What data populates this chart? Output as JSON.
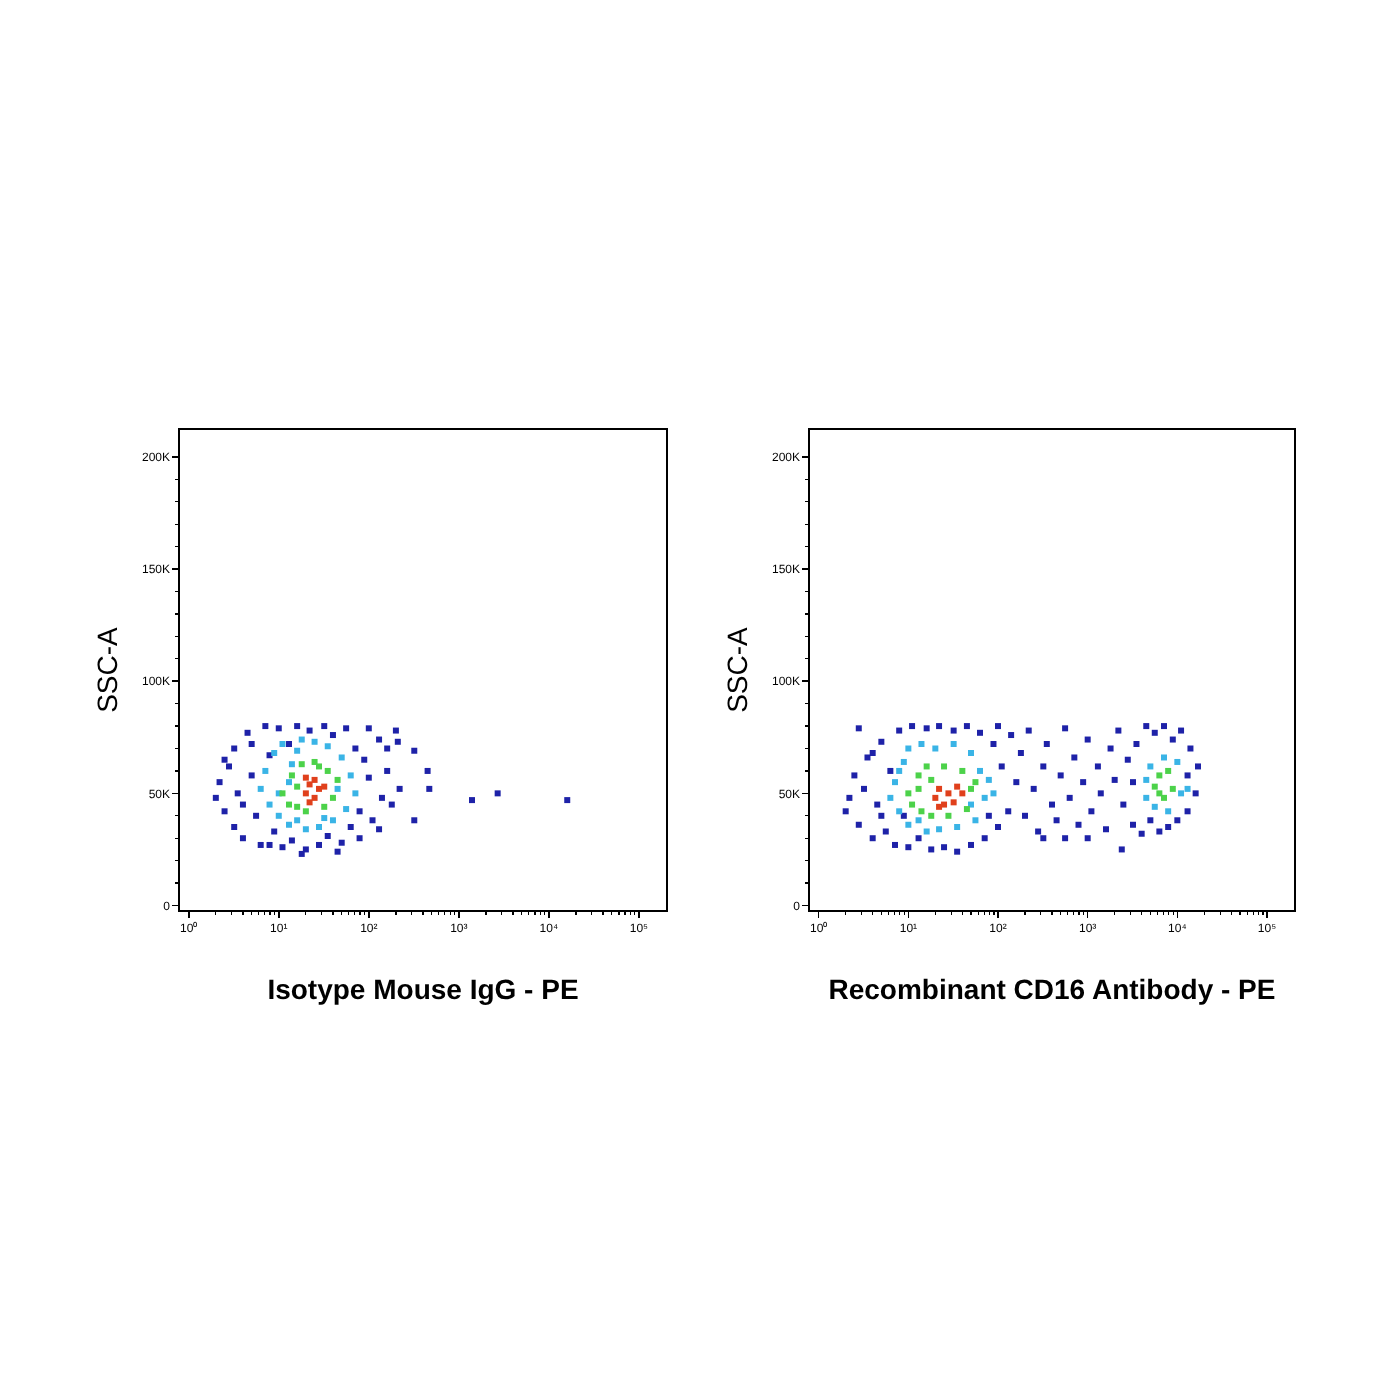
{
  "chart_data": [
    {
      "type": "scatter",
      "xlabel": "Isotype Mouse IgG - PE",
      "ylabel": "SSC-A",
      "log": "x",
      "marker": "square",
      "xlim": [
        0.8,
        200000
      ],
      "ylim": [
        -2000,
        212000
      ],
      "xticks": [
        {
          "value": 1,
          "label": "10⁰"
        },
        {
          "value": 2,
          "label": null
        },
        {
          "value": 3,
          "label": null
        },
        {
          "value": 4,
          "label": null
        },
        {
          "value": 5,
          "label": null
        },
        {
          "value": 6,
          "label": null
        },
        {
          "value": 7,
          "label": null
        },
        {
          "value": 8,
          "label": null
        },
        {
          "value": 9,
          "label": null
        },
        {
          "value": 10,
          "label": "10¹"
        },
        {
          "value": 20,
          "label": null
        },
        {
          "value": 30,
          "label": null
        },
        {
          "value": 40,
          "label": null
        },
        {
          "value": 50,
          "label": null
        },
        {
          "value": 60,
          "label": null
        },
        {
          "value": 70,
          "label": null
        },
        {
          "value": 80,
          "label": null
        },
        {
          "value": 90,
          "label": null
        },
        {
          "value": 100,
          "label": "10²"
        },
        {
          "value": 200,
          "label": null
        },
        {
          "value": 300,
          "label": null
        },
        {
          "value": 400,
          "label": null
        },
        {
          "value": 500,
          "label": null
        },
        {
          "value": 600,
          "label": null
        },
        {
          "value": 700,
          "label": null
        },
        {
          "value": 800,
          "label": null
        },
        {
          "value": 900,
          "label": null
        },
        {
          "value": 1000,
          "label": "10³"
        },
        {
          "value": 2000,
          "label": null
        },
        {
          "value": 3000,
          "label": null
        },
        {
          "value": 4000,
          "label": null
        },
        {
          "value": 5000,
          "label": null
        },
        {
          "value": 6000,
          "label": null
        },
        {
          "value": 7000,
          "label": null
        },
        {
          "value": 8000,
          "label": null
        },
        {
          "value": 9000,
          "label": null
        },
        {
          "value": 10000,
          "label": "10⁴"
        },
        {
          "value": 20000,
          "label": null
        },
        {
          "value": 30000,
          "label": null
        },
        {
          "value": 40000,
          "label": null
        },
        {
          "value": 50000,
          "label": null
        },
        {
          "value": 60000,
          "label": null
        },
        {
          "value": 70000,
          "label": null
        },
        {
          "value": 80000,
          "label": null
        },
        {
          "value": 90000,
          "label": null
        },
        {
          "value": 100000,
          "label": "10⁵"
        }
      ],
      "yticks": [
        0,
        {
          "value": 10000,
          "label": null
        },
        {
          "value": 20000,
          "label": null
        },
        {
          "value": 30000,
          "label": null
        },
        {
          "value": 40000,
          "label": null
        },
        {
          "value": 50000,
          "label": "50K"
        },
        {
          "value": 60000,
          "label": null
        },
        {
          "value": 70000,
          "label": null
        },
        {
          "value": 80000,
          "label": null
        },
        {
          "value": 90000,
          "label": null
        },
        {
          "value": 100000,
          "label": "100K"
        },
        {
          "value": 110000,
          "label": null
        },
        {
          "value": 120000,
          "label": null
        },
        {
          "value": 130000,
          "label": null
        },
        {
          "value": 140000,
          "label": null
        },
        {
          "value": 150000,
          "label": "150K"
        },
        {
          "value": 160000,
          "label": null
        },
        {
          "value": 170000,
          "label": null
        },
        {
          "value": 180000,
          "label": null
        },
        {
          "value": 190000,
          "label": null
        },
        {
          "value": 200000,
          "label": "200K"
        }
      ],
      "series": [
        {
          "color": "#1e22a8",
          "x": [
            2,
            2.2,
            2.5,
            2.8,
            3.2,
            3.2,
            3.5,
            4,
            4.5,
            5,
            5.6,
            6.3,
            7.1,
            7.9,
            8.9,
            10,
            11,
            13,
            14,
            16,
            20,
            22,
            28,
            32,
            35,
            40,
            50,
            56,
            63,
            71,
            79,
            89,
            100,
            110,
            130,
            140,
            160,
            180,
            200,
            220,
            2.5,
            4,
            5,
            79,
            130,
            45,
            18,
            7.9,
            100,
            160,
            210,
            320,
            450,
            470,
            320,
            1400,
            2700,
            16000
          ],
          "values": [
            48000,
            55000,
            42000,
            62000,
            35000,
            70000,
            50000,
            30000,
            77000,
            58000,
            40000,
            27000,
            80000,
            67000,
            33000,
            79000,
            26000,
            72000,
            29000,
            80000,
            25000,
            78000,
            27000,
            80000,
            31000,
            76000,
            28000,
            79000,
            35000,
            70000,
            42000,
            65000,
            57000,
            38000,
            74000,
            48000,
            60000,
            45000,
            78000,
            52000,
            65000,
            45000,
            72000,
            30000,
            34000,
            24000,
            23000,
            27000,
            79000,
            70000,
            73000,
            69000,
            60000,
            52000,
            38000,
            47000,
            50000,
            47000
          ]
        },
        {
          "color": "#3ab4e6",
          "x": [
            6.3,
            7.1,
            7.9,
            8.9,
            10,
            11,
            13,
            14,
            16,
            18,
            20,
            25,
            28,
            35,
            40,
            50,
            56,
            63,
            71,
            13,
            10,
            45,
            32,
            16
          ],
          "values": [
            52000,
            60000,
            45000,
            68000,
            40000,
            72000,
            36000,
            63000,
            38000,
            74000,
            34000,
            73000,
            35000,
            71000,
            38000,
            66000,
            43000,
            58000,
            50000,
            55000,
            50000,
            52000,
            39000,
            69000
          ]
        },
        {
          "color": "#4cd24a",
          "x": [
            11,
            13,
            14,
            16,
            18,
            20,
            25,
            32,
            35,
            40,
            45,
            28,
            16
          ],
          "values": [
            50000,
            45000,
            58000,
            44000,
            63000,
            42000,
            64000,
            44000,
            60000,
            48000,
            56000,
            62000,
            53000
          ]
        },
        {
          "color": "#e0401c",
          "x": [
            20,
            22,
            25,
            28,
            22,
            32,
            20,
            25
          ],
          "values": [
            50000,
            54000,
            48000,
            52000,
            46000,
            53000,
            57000,
            56000
          ]
        }
      ]
    },
    {
      "type": "scatter",
      "xlabel": "Recombinant CD16 Antibody - PE",
      "ylabel": "SSC-A",
      "log": "x",
      "marker": "square",
      "xlim": [
        0.8,
        200000
      ],
      "ylim": [
        -2000,
        212000
      ],
      "xticks": [
        {
          "value": 1,
          "label": "10⁰"
        },
        {
          "value": 2,
          "label": null
        },
        {
          "value": 3,
          "label": null
        },
        {
          "value": 4,
          "label": null
        },
        {
          "value": 5,
          "label": null
        },
        {
          "value": 6,
          "label": null
        },
        {
          "value": 7,
          "label": null
        },
        {
          "value": 8,
          "label": null
        },
        {
          "value": 9,
          "label": null
        },
        {
          "value": 10,
          "label": "10¹"
        },
        {
          "value": 20,
          "label": null
        },
        {
          "value": 30,
          "label": null
        },
        {
          "value": 40,
          "label": null
        },
        {
          "value": 50,
          "label": null
        },
        {
          "value": 60,
          "label": null
        },
        {
          "value": 70,
          "label": null
        },
        {
          "value": 80,
          "label": null
        },
        {
          "value": 90,
          "label": null
        },
        {
          "value": 100,
          "label": "10²"
        },
        {
          "value": 200,
          "label": null
        },
        {
          "value": 300,
          "label": null
        },
        {
          "value": 400,
          "label": null
        },
        {
          "value": 500,
          "label": null
        },
        {
          "value": 600,
          "label": null
        },
        {
          "value": 700,
          "label": null
        },
        {
          "value": 800,
          "label": null
        },
        {
          "value": 900,
          "label": null
        },
        {
          "value": 1000,
          "label": "10³"
        },
        {
          "value": 2000,
          "label": null
        },
        {
          "value": 3000,
          "label": null
        },
        {
          "value": 4000,
          "label": null
        },
        {
          "value": 5000,
          "label": null
        },
        {
          "value": 6000,
          "label": null
        },
        {
          "value": 7000,
          "label": null
        },
        {
          "value": 8000,
          "label": null
        },
        {
          "value": 9000,
          "label": null
        },
        {
          "value": 10000,
          "label": "10⁴"
        },
        {
          "value": 20000,
          "label": null
        },
        {
          "value": 30000,
          "label": null
        },
        {
          "value": 40000,
          "label": null
        },
        {
          "value": 50000,
          "label": null
        },
        {
          "value": 60000,
          "label": null
        },
        {
          "value": 70000,
          "label": null
        },
        {
          "value": 80000,
          "label": null
        },
        {
          "value": 90000,
          "label": null
        },
        {
          "value": 100000,
          "label": "10⁵"
        }
      ],
      "yticks": [
        0,
        {
          "value": 10000,
          "label": null
        },
        {
          "value": 20000,
          "label": null
        },
        {
          "value": 30000,
          "label": null
        },
        {
          "value": 40000,
          "label": null
        },
        {
          "value": 50000,
          "label": "50K"
        },
        {
          "value": 60000,
          "label": null
        },
        {
          "value": 70000,
          "label": null
        },
        {
          "value": 80000,
          "label": null
        },
        {
          "value": 90000,
          "label": null
        },
        {
          "value": 100000,
          "label": "100K"
        },
        {
          "value": 110000,
          "label": null
        },
        {
          "value": 120000,
          "label": null
        },
        {
          "value": 130000,
          "label": null
        },
        {
          "value": 140000,
          "label": null
        },
        {
          "value": 150000,
          "label": "150K"
        },
        {
          "value": 160000,
          "label": null
        },
        {
          "value": 170000,
          "label": null
        },
        {
          "value": 180000,
          "label": null
        },
        {
          "value": 190000,
          "label": null
        },
        {
          "value": 200000,
          "label": "200K"
        }
      ],
      "series": [
        {
          "color": "#1e22a8",
          "x": [
            2,
            2.2,
            2.5,
            2.8,
            2.8,
            3.2,
            3.5,
            4,
            4.5,
            5,
            5.6,
            6.3,
            7.1,
            7.9,
            8.9,
            10,
            11,
            13,
            16,
            18,
            22,
            25,
            32,
            35,
            45,
            50,
            63,
            71,
            89,
            100,
            110,
            130,
            140,
            160,
            4,
            5,
            79,
            100,
            180,
            200,
            220,
            250,
            280,
            320,
            350,
            400,
            450,
            500,
            560,
            630,
            710,
            790,
            890,
            1000,
            1100,
            1300,
            1400,
            1600,
            1800,
            2000,
            2400,
            320,
            560,
            1000,
            2200,
            2500,
            2800,
            3200,
            3500,
            4000,
            4500,
            5000,
            5600,
            6300,
            7100,
            7900,
            8900,
            10000,
            11000,
            13000,
            14000,
            16000,
            17000,
            13000,
            3200
          ],
          "values": [
            42000,
            48000,
            58000,
            36000,
            79000,
            52000,
            66000,
            30000,
            45000,
            73000,
            33000,
            60000,
            27000,
            78000,
            40000,
            26000,
            80000,
            30000,
            79000,
            25000,
            80000,
            26000,
            78000,
            24000,
            80000,
            27000,
            77000,
            30000,
            72000,
            35000,
            62000,
            42000,
            76000,
            55000,
            68000,
            40000,
            40000,
            80000,
            68000,
            40000,
            78000,
            52000,
            33000,
            62000,
            72000,
            45000,
            38000,
            58000,
            79000,
            48000,
            66000,
            36000,
            55000,
            74000,
            42000,
            62000,
            50000,
            34000,
            70000,
            56000,
            25000,
            30000,
            30000,
            30000,
            78000,
            45000,
            65000,
            36000,
            72000,
            32000,
            80000,
            38000,
            77000,
            33000,
            80000,
            35000,
            74000,
            38000,
            78000,
            42000,
            70000,
            50000,
            62000,
            58000,
            55000
          ]
        },
        {
          "color": "#3ab4e6",
          "x": [
            6.3,
            7.1,
            7.9,
            8.9,
            10,
            10,
            13,
            14,
            16,
            20,
            22,
            32,
            35,
            50,
            56,
            63,
            71,
            79,
            89,
            7.9,
            50,
            4500,
            5000,
            5600,
            7100,
            7900,
            10000,
            11000,
            4500,
            13000
          ],
          "values": [
            48000,
            55000,
            42000,
            64000,
            36000,
            70000,
            38000,
            72000,
            33000,
            70000,
            34000,
            72000,
            35000,
            68000,
            38000,
            60000,
            48000,
            56000,
            50000,
            60000,
            45000,
            48000,
            62000,
            44000,
            66000,
            42000,
            64000,
            50000,
            56000,
            52000
          ]
        },
        {
          "color": "#4cd24a",
          "x": [
            10,
            11,
            13,
            14,
            16,
            18,
            25,
            28,
            40,
            45,
            50,
            56,
            13,
            18,
            5600,
            6300,
            7100,
            7900,
            8900,
            6300
          ],
          "values": [
            50000,
            45000,
            58000,
            42000,
            62000,
            40000,
            62000,
            40000,
            60000,
            43000,
            52000,
            55000,
            52000,
            56000,
            53000,
            58000,
            48000,
            60000,
            52000,
            50000
          ]
        },
        {
          "color": "#e0401c",
          "x": [
            20,
            22,
            28,
            32,
            35,
            25,
            40,
            22
          ],
          "values": [
            48000,
            52000,
            50000,
            46000,
            53000,
            45000,
            50000,
            44000
          ]
        }
      ]
    }
  ]
}
